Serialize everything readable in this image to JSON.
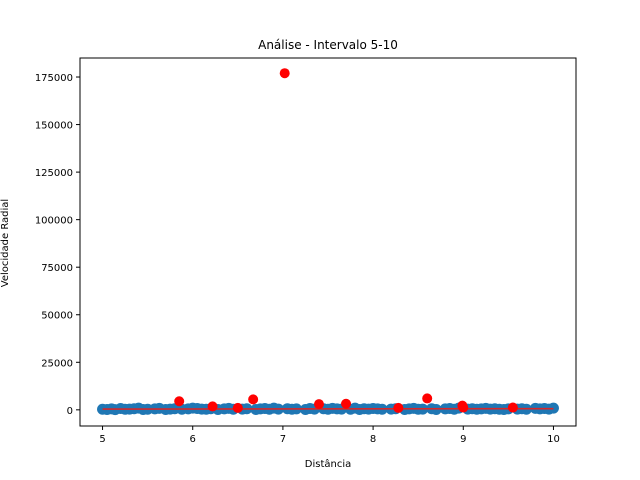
{
  "chart_data": {
    "type": "scatter",
    "title": "Análise - Intervalo 5-10",
    "xlabel": "Distância",
    "ylabel": "Velocidade Radial",
    "xlim": [
      4.75,
      10.25
    ],
    "ylim": [
      -8500,
      185000
    ],
    "x_ticks": [
      5,
      6,
      7,
      8,
      9,
      10
    ],
    "y_ticks": [
      0,
      25000,
      50000,
      75000,
      100000,
      125000,
      150000,
      175000
    ],
    "grid": false,
    "colors": {
      "normal": "#1f77b4",
      "outlier": "#ff0000",
      "fit_line": "#d62728"
    },
    "series": [
      {
        "values_x": [
          5.0,
          5.05,
          5.1,
          5.14,
          5.2,
          5.25,
          5.3,
          5.35,
          5.4,
          5.45,
          5.5,
          5.58,
          5.63,
          5.7,
          5.75,
          5.8,
          5.88,
          5.95,
          6.0,
          6.05,
          6.1,
          6.15,
          6.2,
          6.28,
          6.35,
          6.4,
          6.45,
          6.55,
          6.6,
          6.7,
          6.75,
          6.8,
          6.85,
          6.9,
          6.95,
          7.05,
          7.1,
          7.15,
          7.25,
          7.3,
          7.35,
          7.45,
          7.5,
          7.55,
          7.6,
          7.65,
          7.75,
          7.8,
          7.85,
          7.9,
          7.95,
          8.0,
          8.05,
          8.1,
          8.2,
          8.25,
          8.35,
          8.4,
          8.45,
          8.5,
          8.55,
          8.65,
          8.7,
          8.8,
          8.85,
          8.9,
          8.95,
          9.05,
          9.1,
          9.15,
          9.2,
          9.25,
          9.3,
          9.35,
          9.4,
          9.45,
          9.5,
          9.6,
          9.65,
          9.7,
          9.8,
          9.85,
          9.9,
          9.95,
          10.0
        ],
        "values_y": [
          300,
          200,
          500,
          100,
          700,
          300,
          400,
          600,
          900,
          200,
          300,
          500,
          800,
          200,
          400,
          600,
          300,
          500,
          900,
          700,
          400,
          300,
          600,
          200,
          500,
          800,
          300,
          400,
          600,
          200,
          500,
          700,
          300,
          900,
          400,
          600,
          300,
          500,
          200,
          700,
          400,
          600,
          300,
          800,
          500,
          400,
          300,
          900,
          200,
          600,
          400,
          700,
          500,
          300,
          400,
          600,
          200,
          500,
          800,
          300,
          400,
          600,
          200,
          500,
          700,
          300,
          900,
          400,
          600,
          300,
          500,
          800,
          400,
          600,
          300,
          200,
          500,
          400,
          600,
          300,
          800,
          500,
          700,
          400,
          900
        ]
      },
      {
        "values_x": [
          5.85,
          6.22,
          6.5,
          6.67,
          7.02,
          7.4,
          7.7,
          8.28,
          8.6,
          8.99,
          9.0,
          9.55
        ],
        "values_y": [
          4500,
          1800,
          1000,
          5500,
          177000,
          3000,
          3200,
          1000,
          6000,
          2200,
          1200,
          1200
        ]
      }
    ],
    "fit_line": {
      "x": [
        5.0,
        10.0
      ],
      "y": [
        400,
        600
      ]
    }
  }
}
